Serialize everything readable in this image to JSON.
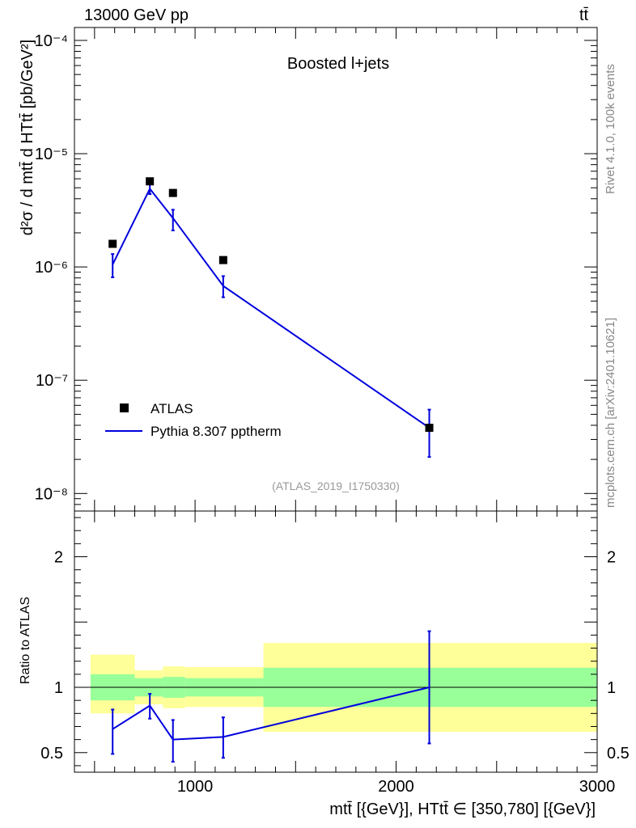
{
  "header": {
    "beam": "13000 GeV pp",
    "process": "tt̄"
  },
  "side": {
    "rivet": "Rivet 4.1.0,  100k events",
    "source": "mcplots.cern.ch [arXiv:2401.10621]"
  },
  "chart_data": [
    {
      "type": "line",
      "panel": "main",
      "title": "Boosted l+jets",
      "analysis_id": "(ATLAS_2019_I1750330)",
      "ylabel": "d²σ / d mtt̄ d HTtt̄ [pb/GeV²]",
      "yscale": "log",
      "ylim": [
        7e-09,
        0.00013
      ],
      "xlim": [
        400,
        3000
      ],
      "yticks": [
        {
          "value": 1e-08,
          "label": "10⁻⁸"
        },
        {
          "value": 1e-07,
          "label": "10⁻⁷"
        },
        {
          "value": 1e-06,
          "label": "10⁻⁶"
        },
        {
          "value": 1e-05,
          "label": "10⁻⁵"
        },
        {
          "value": 0.0001,
          "label": "10⁻⁴"
        }
      ],
      "legend": {
        "position": "bottom-left",
        "entries": [
          "ATLAS",
          "Pythia 8.307 pptherm"
        ]
      },
      "series": [
        {
          "name": "ATLAS",
          "style": "markers",
          "color": "#000000",
          "x": [
            590,
            775,
            890,
            1140,
            2165
          ],
          "y": [
            1.6e-06,
            5.7e-06,
            4.5e-06,
            1.15e-06,
            3.8e-08
          ]
        },
        {
          "name": "Pythia 8.307 pptherm",
          "style": "line",
          "color": "#0000dd",
          "x": [
            590,
            775,
            890,
            1140,
            2165
          ],
          "y": [
            1.05e-06,
            4.9e-06,
            2.7e-06,
            6.8e-07,
            3.8e-08
          ],
          "err_low": [
            8.1e-07,
            4.4e-06,
            2.1e-06,
            5.4e-07,
            2.1e-08
          ],
          "err_high": [
            1.3e-06,
            5.4e-06,
            3.2e-06,
            8.3e-07,
            5.5e-08
          ]
        }
      ]
    },
    {
      "type": "line",
      "panel": "ratio",
      "ylabel": "Ratio to ATLAS",
      "xlabel": "mtt̄ [{GeV}], HTtt̄ ∈ [350,780] [{GeV}]",
      "ylim": [
        0.35,
        2.35
      ],
      "xlim": [
        400,
        3000
      ],
      "yticks": [
        {
          "value": 0.5,
          "label": "0.5"
        },
        {
          "value": 1,
          "label": "1"
        },
        {
          "value": 2,
          "label": "2"
        }
      ],
      "xticks": [
        {
          "value": 1000,
          "label": "1000"
        },
        {
          "value": 2000,
          "label": "2000"
        },
        {
          "value": 3000,
          "label": "3000"
        }
      ],
      "bands": [
        {
          "x0": 480,
          "x1": 700,
          "yellow": [
            0.8,
            1.25
          ],
          "green": [
            0.9,
            1.1
          ]
        },
        {
          "x0": 700,
          "x1": 840,
          "yellow": [
            0.87,
            1.13
          ],
          "green": [
            0.93,
            1.07
          ]
        },
        {
          "x0": 840,
          "x1": 950,
          "yellow": [
            0.84,
            1.16
          ],
          "green": [
            0.92,
            1.08
          ]
        },
        {
          "x0": 950,
          "x1": 1340,
          "yellow": [
            0.85,
            1.155
          ],
          "green": [
            0.93,
            1.07
          ]
        },
        {
          "x0": 1340,
          "x1": 3000,
          "yellow": [
            0.66,
            1.34
          ],
          "green": [
            0.85,
            1.15
          ]
        }
      ],
      "series": [
        {
          "name": "Pythia 8.307 pptherm / ATLAS",
          "color": "#0000dd",
          "x": [
            590,
            775,
            890,
            1140,
            2165
          ],
          "y": [
            0.68,
            0.86,
            0.6,
            0.62,
            1.0
          ],
          "err_low": [
            0.49,
            0.76,
            0.43,
            0.46,
            0.57
          ],
          "err_high": [
            0.83,
            0.95,
            0.75,
            0.77,
            1.43
          ]
        }
      ]
    }
  ]
}
